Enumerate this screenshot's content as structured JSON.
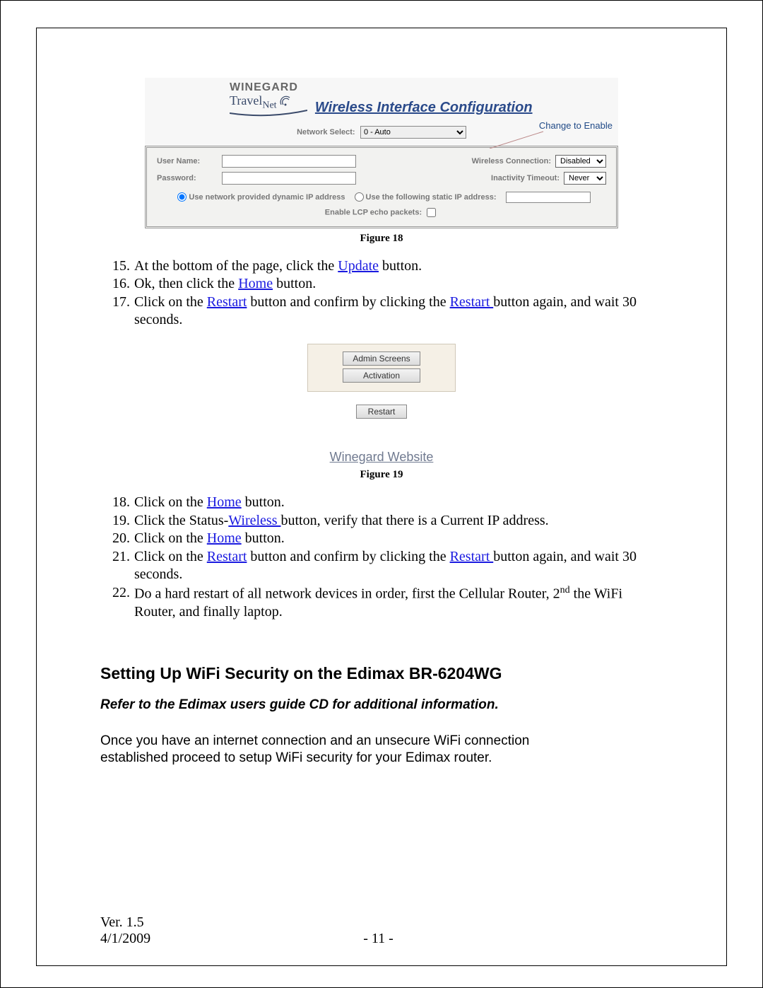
{
  "figure18": {
    "logo_line1": "WINEGARD",
    "logo_line2_a": "Travel",
    "logo_line2_b": "Net",
    "title": "Wireless Interface Configuration",
    "network_select_label": "Network Select:",
    "network_select_value": "0 - Auto",
    "change_to_enable": "Change to Enable",
    "username_label": "User Name:",
    "password_label": "Password:",
    "wireless_conn_label": "Wireless Connection:",
    "wireless_conn_value": "Disabled",
    "inactivity_label": "Inactivity Timeout:",
    "inactivity_value": "Never",
    "radio_dynamic": "Use network provided dynamic IP address",
    "radio_static": "Use the following static IP address:",
    "lcp_label": "Enable LCP echo packets:",
    "caption": "Figure 18"
  },
  "stepsA": [
    {
      "n": "15.",
      "pre": "At the bottom of the page, click the ",
      "link": "Update",
      "post": " button."
    },
    {
      "n": "16.",
      "pre": "Ok, then click the ",
      "link": "Home",
      "post": " button."
    },
    {
      "n": "17.",
      "pre": "Click on the ",
      "link": "Restart",
      "mid": " button and confirm by clicking the ",
      "link2": "Restart ",
      "post": "button again, and wait 30 seconds."
    }
  ],
  "figure19": {
    "btn_admin": "Admin Screens",
    "btn_activation": "Activation",
    "btn_restart": "Restart",
    "website_label": "Winegard Website",
    "caption": "Figure 19"
  },
  "stepsB": [
    {
      "n": "18.",
      "pre": "Click on the ",
      "link": "Home",
      "post": " button."
    },
    {
      "n": "19.",
      "pre": "Click the Status-",
      "link": "Wireless ",
      "post": "button, verify that there is a Current IP address."
    },
    {
      "n": "20.",
      "pre": " Click on the ",
      "link": "Home",
      "post": " button."
    },
    {
      "n": "21.",
      "pre": "Click on the ",
      "link": "Restart",
      "mid": " button and confirm by clicking the ",
      "link2": "Restart ",
      "post": "button again, and wait 30 seconds."
    },
    {
      "n": "22.",
      "plain_pre": " Do a hard restart of all network devices in order, first the Cellular Router, 2",
      "sup": "nd",
      "plain_post": " the WiFi Router, and finally laptop."
    }
  ],
  "section": {
    "heading": "Setting Up WiFi Security on the Edimax BR-6204WG",
    "sub": "Refer to the Edimax users guide CD for additional information.",
    "para": "Once you have an internet connection and an unsecure WiFi connection established proceed to setup WiFi security for your Edimax router."
  },
  "footer": {
    "version": "Ver. 1.5",
    "date": "4/1/2009",
    "page": "- 11 -"
  },
  "colors": {
    "link": "#1a1ae0",
    "title_blue": "#2a4a8a",
    "panel_bg": "#f2f2f0",
    "grey_text": "#777777"
  }
}
